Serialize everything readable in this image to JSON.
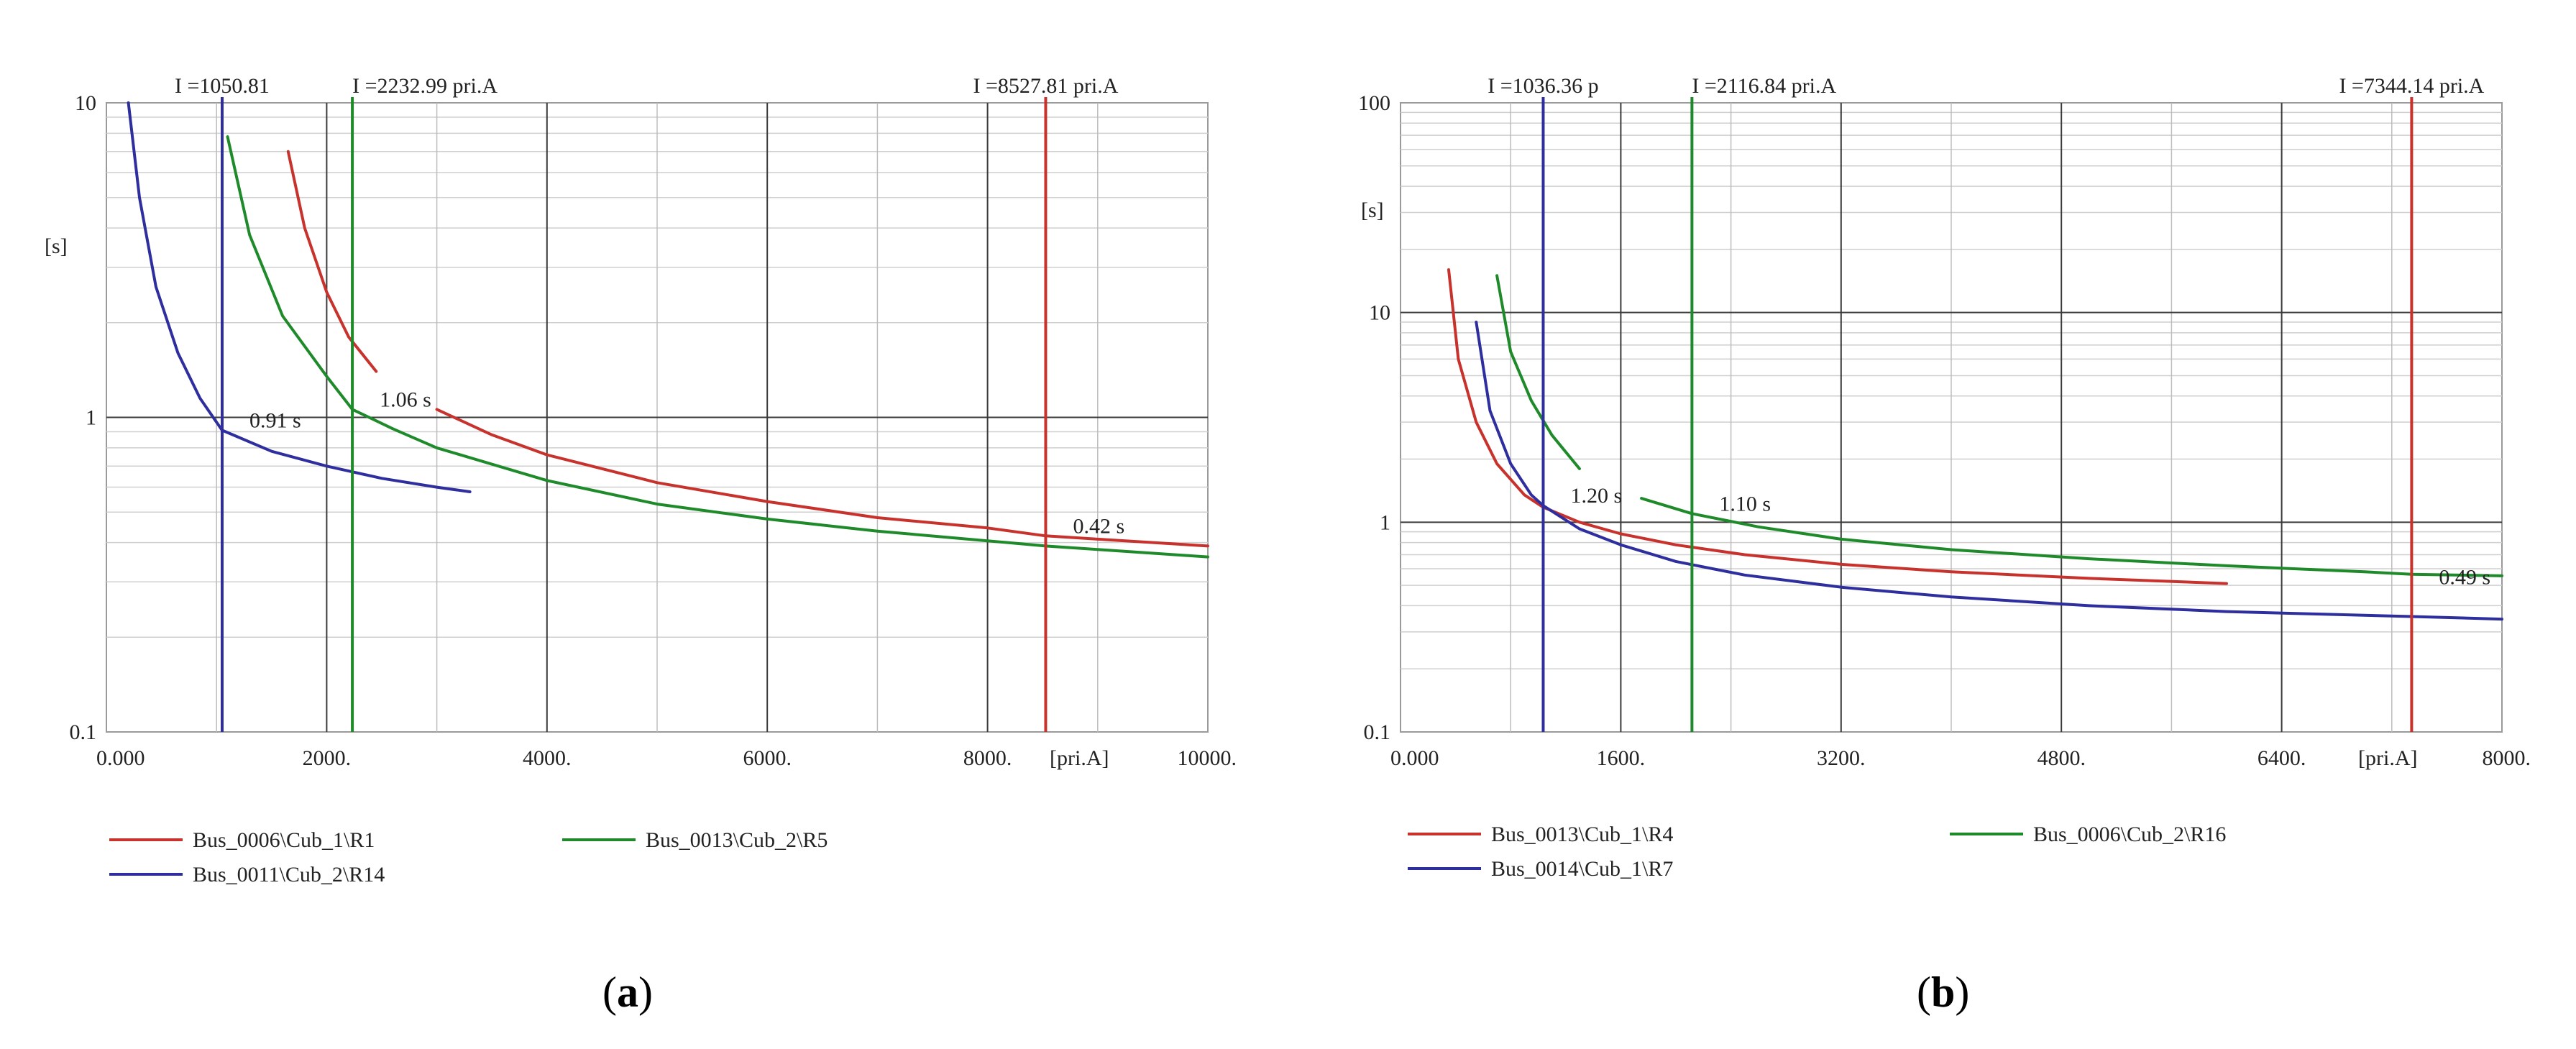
{
  "chart_data": [
    {
      "type": "line",
      "panel": "a",
      "caption": "(a)",
      "caption_letter": "a",
      "xlabel": "[pri.A]",
      "ylabel": "[s]",
      "xlim": [
        0,
        10000
      ],
      "ylim": [
        0.1,
        10
      ],
      "yscale": "log",
      "grid": true,
      "x_ticks": [
        {
          "value": 0,
          "label": "0.000"
        },
        {
          "value": 2000,
          "label": "2000."
        },
        {
          "value": 4000,
          "label": "4000."
        },
        {
          "value": 6000,
          "label": "6000."
        },
        {
          "value": 8000,
          "label": "8000."
        },
        {
          "value": 10000,
          "label": "10000."
        }
      ],
      "x_minor_grid": [
        1000,
        3000,
        5000,
        7000,
        9000
      ],
      "y_ticks": [
        {
          "value": 0.1,
          "label": "0.1"
        },
        {
          "value": 1,
          "label": "1"
        },
        {
          "value": 10,
          "label": "10"
        }
      ],
      "vlines": [
        {
          "x": 1050.81,
          "label": "I =1050.81",
          "color": "#2e2e9e"
        },
        {
          "x": 2232.99,
          "label": "I =2232.99 pri.A",
          "color": "#1e8a2a"
        },
        {
          "x": 8527.81,
          "label": "I =8527.81 pri.A",
          "color": "#c8322c"
        }
      ],
      "series": [
        {
          "name": "Bus_0006\\Cub_1\\R1",
          "color": "#c8322c",
          "segments": [
            {
              "x": [
                1650,
                1800,
                2000,
                2200,
                2450
              ],
              "y": [
                7.0,
                4.0,
                2.5,
                1.8,
                1.4
              ]
            },
            {
              "x": [
                3000,
                3500,
                4000,
                5000,
                6000,
                7000,
                8000,
                8527,
                9000,
                10000
              ],
              "y": [
                1.06,
                0.88,
                0.76,
                0.62,
                0.54,
                0.48,
                0.445,
                0.42,
                0.41,
                0.39
              ]
            }
          ]
        },
        {
          "name": "Bus_0011\\Cub_2\\R14",
          "color": "#2e2e9e",
          "segments": [
            {
              "x": [
                200,
                300,
                450,
                650,
                850,
                1050,
                1500,
                2000,
                2500,
                3000,
                3300
              ],
              "y": [
                10,
                5.0,
                2.6,
                1.6,
                1.15,
                0.91,
                0.78,
                0.7,
                0.64,
                0.6,
                0.58
              ]
            }
          ]
        },
        {
          "name": "Bus_0013\\Cub_2\\R5",
          "color": "#1e8a2a",
          "segments": [
            {
              "x": [
                1100,
                1300,
                1600,
                2000,
                2233,
                2600,
                3000,
                4000,
                5000,
                6000,
                7000,
                8000,
                8527,
                9000,
                10000
              ],
              "y": [
                7.8,
                3.8,
                2.1,
                1.35,
                1.06,
                0.92,
                0.8,
                0.63,
                0.53,
                0.475,
                0.435,
                0.405,
                0.39,
                0.38,
                0.36
              ]
            }
          ]
        }
      ],
      "annotations": [
        {
          "text": "0.91 s",
          "x": 1050.81,
          "y": 0.91,
          "color": "#2e2e9e"
        },
        {
          "text": "1.06 s",
          "x": 2232.99,
          "y": 1.06,
          "color": "#1e8a2a"
        },
        {
          "text": "0.42 s",
          "x": 8527.81,
          "y": 0.42,
          "color": "#c8322c"
        }
      ]
    },
    {
      "type": "line",
      "panel": "b",
      "caption": "(b)",
      "caption_letter": "b",
      "xlabel": "[pri.A]",
      "ylabel": "[s]",
      "xlim": [
        0,
        8000
      ],
      "ylim": [
        0.1,
        100
      ],
      "yscale": "log",
      "grid": true,
      "x_ticks": [
        {
          "value": 0,
          "label": "0.000"
        },
        {
          "value": 1600,
          "label": "1600."
        },
        {
          "value": 3200,
          "label": "3200."
        },
        {
          "value": 4800,
          "label": "4800."
        },
        {
          "value": 6400,
          "label": "6400."
        },
        {
          "value": 8000,
          "label": "8000."
        }
      ],
      "x_minor_grid": [
        800,
        2400,
        4000,
        5600,
        7200
      ],
      "y_ticks": [
        {
          "value": 0.1,
          "label": "0.1"
        },
        {
          "value": 1,
          "label": "1"
        },
        {
          "value": 10,
          "label": "10"
        },
        {
          "value": 100,
          "label": "100"
        }
      ],
      "vlines": [
        {
          "x": 1036.36,
          "label": "I =1036.36 p",
          "color": "#2e2e9e"
        },
        {
          "x": 2116.84,
          "label": "I =2116.84 pri.A",
          "color": "#1e8a2a"
        },
        {
          "x": 7344.14,
          "label": "I =7344.14 pri.A",
          "color": "#c8322c"
        }
      ],
      "series": [
        {
          "name": "Bus_0013\\Cub_1\\R4",
          "color": "#c8322c",
          "segments": [
            {
              "x": [
                350,
                420,
                550,
                700,
                900,
                1036,
                1300,
                1600,
                2000,
                2500,
                3200,
                4000,
                5000,
                6000
              ],
              "y": [
                16,
                6.0,
                3.0,
                1.9,
                1.35,
                1.18,
                1.0,
                0.88,
                0.78,
                0.7,
                0.63,
                0.58,
                0.54,
                0.51
              ]
            }
          ]
        },
        {
          "name": "Bus_0014\\Cub_1\\R7",
          "color": "#2e2e9e",
          "segments": [
            {
              "x": [
                550,
                650,
                800,
                950,
                1036,
                1300,
                1600,
                2000,
                2500,
                3200,
                4000,
                5000,
                6000,
                7344,
                8000
              ],
              "y": [
                9.0,
                3.4,
                1.9,
                1.35,
                1.2,
                0.93,
                0.78,
                0.65,
                0.56,
                0.49,
                0.44,
                0.4,
                0.375,
                0.355,
                0.345
              ]
            }
          ]
        },
        {
          "name": "Bus_0006\\Cub_2\\R16",
          "color": "#1e8a2a",
          "segments": [
            {
              "x": [
                700,
                800,
                950,
                1100,
                1300
              ],
              "y": [
                15,
                6.5,
                3.8,
                2.6,
                1.8
              ]
            },
            {
              "x": [
                1750,
                2116,
                2600,
                3200,
                4000,
                5000,
                6000,
                7000,
                7344,
                8000
              ],
              "y": [
                1.3,
                1.1,
                0.95,
                0.83,
                0.74,
                0.67,
                0.62,
                0.58,
                0.565,
                0.555
              ]
            }
          ]
        }
      ],
      "annotations": [
        {
          "text": "1.20 s",
          "x": 1036.36,
          "y": 1.2,
          "color": "#2e2e9e"
        },
        {
          "text": "1.10 s",
          "x": 2116.84,
          "y": 1.1,
          "color": "#1e8a2a"
        },
        {
          "text": "0.49 s",
          "x": 7344.14,
          "y": 0.49,
          "color": "#c8322c"
        }
      ]
    }
  ]
}
